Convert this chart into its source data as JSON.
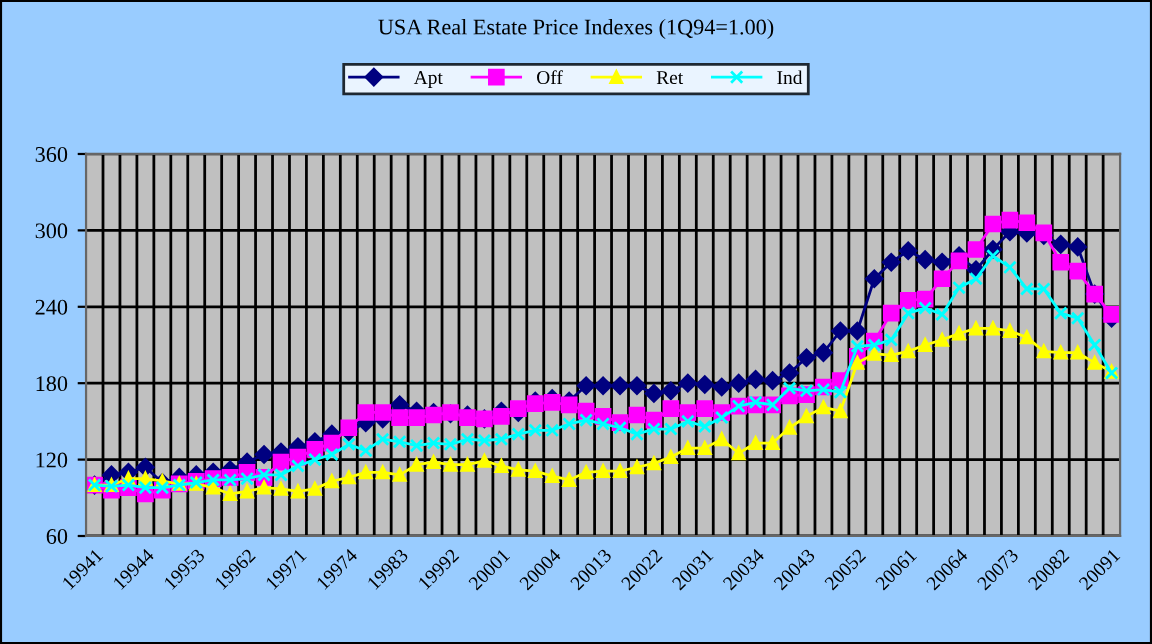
{
  "chart_data": {
    "type": "line",
    "title": "USA Real Estate Price Indexes (1Q94=1.00)",
    "categories": [
      "19941",
      null,
      null,
      "19944",
      null,
      null,
      "19953",
      null,
      null,
      "19962",
      null,
      null,
      "19971",
      null,
      null,
      "19974",
      null,
      null,
      "19983",
      null,
      null,
      "19992",
      null,
      null,
      "20001",
      null,
      null,
      "20004",
      null,
      null,
      "20013",
      null,
      null,
      "20022",
      null,
      null,
      "20031",
      null,
      null,
      "20034",
      null,
      null,
      "20043",
      null,
      null,
      "20052",
      null,
      null,
      "20061",
      null,
      null,
      "20064",
      null,
      null,
      "20073",
      null,
      null,
      "20082",
      null,
      null,
      "20091"
    ],
    "series": [
      {
        "name": "Apt",
        "color": "#000080",
        "marker": "diamond",
        "values": [
          100,
          108,
          110,
          114,
          102,
          106,
          108,
          110,
          112,
          118,
          124,
          126,
          130,
          134,
          140,
          142,
          149,
          152,
          163,
          158,
          157,
          156,
          155,
          152,
          158,
          157,
          166,
          168,
          166,
          178,
          178,
          178,
          178,
          172,
          174,
          180,
          179,
          177,
          180,
          183,
          182,
          188,
          200,
          204,
          221,
          221,
          262,
          275,
          284,
          277,
          275,
          280,
          269,
          285,
          299,
          298,
          296,
          289,
          287,
          250,
          231
        ]
      },
      {
        "name": "Off",
        "color": "#ff00ff",
        "marker": "square",
        "values": [
          100,
          96,
          98,
          93,
          96,
          101,
          103,
          105,
          106,
          110,
          106,
          118,
          122,
          128,
          133,
          145,
          157,
          157,
          153,
          153,
          155,
          157,
          153,
          152,
          154,
          160,
          164,
          165,
          163,
          158,
          154,
          149,
          155,
          151,
          160,
          157,
          160,
          157,
          162,
          163,
          163,
          170,
          171,
          177,
          182,
          201,
          213,
          235,
          245,
          246,
          262,
          276,
          285,
          305,
          308,
          306,
          298,
          275,
          268,
          250,
          234
        ]
      },
      {
        "name": "Ret",
        "color": "#ffff00",
        "marker": "triangle",
        "values": [
          100,
          100,
          105,
          105,
          103,
          101,
          101,
          98,
          93,
          95,
          98,
          97,
          95,
          97,
          103,
          106,
          110,
          110,
          108,
          116,
          118,
          116,
          116,
          119,
          115,
          112,
          111,
          107,
          104,
          110,
          111,
          111,
          114,
          117,
          122,
          129,
          129,
          136,
          125,
          133,
          133,
          145,
          154,
          161,
          158,
          196,
          203,
          202,
          205,
          210,
          214,
          219,
          223,
          223,
          221,
          216,
          205,
          204,
          204,
          196,
          189
        ]
      },
      {
        "name": "Ind",
        "color": "#00ffff",
        "marker": "cross",
        "values": [
          100,
          99,
          100,
          98,
          98,
          100,
          102,
          104,
          104,
          105,
          108,
          108,
          115,
          120,
          124,
          132,
          127,
          136,
          134,
          131,
          133,
          132,
          136,
          135,
          136,
          140,
          143,
          143,
          148,
          151,
          148,
          145,
          140,
          144,
          144,
          150,
          146,
          153,
          162,
          165,
          163,
          176,
          174,
          175,
          173,
          209,
          210,
          214,
          235,
          239,
          234,
          255,
          262,
          280,
          271,
          254,
          254,
          235,
          231,
          210,
          188
        ]
      }
    ],
    "ylim": [
      60,
      360
    ],
    "yticks": [
      60,
      120,
      180,
      240,
      300,
      360
    ],
    "grid": true,
    "legend": "top"
  }
}
